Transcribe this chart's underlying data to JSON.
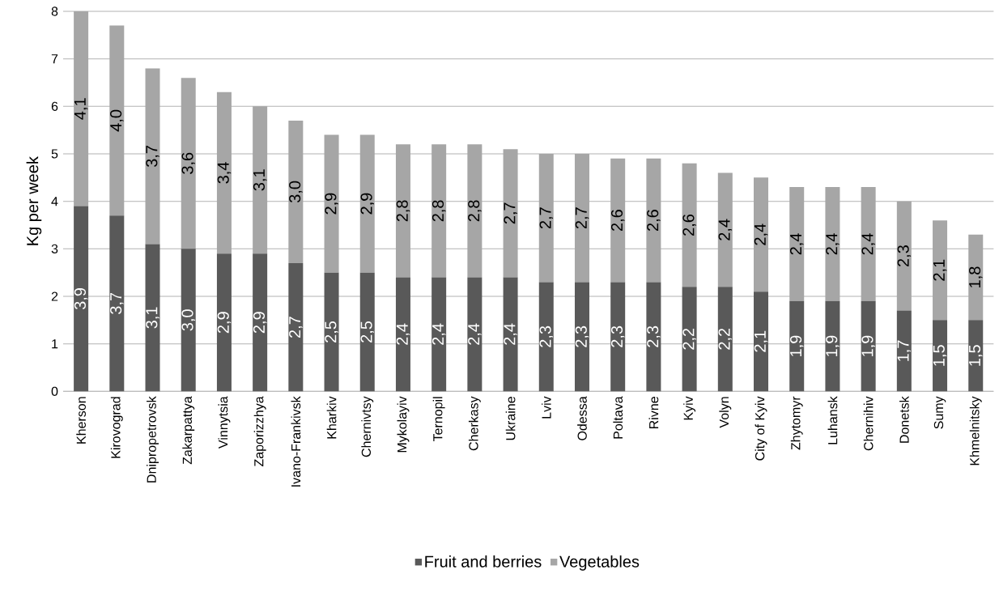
{
  "chart_data": {
    "type": "bar",
    "stacked": true,
    "ylabel": "Kg per week",
    "ylim": [
      0,
      8
    ],
    "yticks": [
      0,
      1,
      2,
      3,
      4,
      5,
      6,
      7,
      8
    ],
    "grid": "y",
    "legend": "bottom",
    "categories": [
      "Kherson",
      "Kirovograd",
      "Dnipropetrovsk",
      "Zakarpattya",
      "Vinnytsia",
      "Zaporizzhya",
      "Ivano-Frankivsk",
      "Kharkiv",
      "Chernivtsy",
      "Mykolayiv",
      "Ternopil",
      "Cherkasy",
      "Ukraine",
      "Lviv",
      "Odessa",
      "Poltava",
      "Rivne",
      "Kyiv",
      "Volyn",
      "City of Kyiv",
      "Zhytomyr",
      "Luhansk",
      "Chernihiv",
      "Donetsk",
      "Sumy",
      "Khmelnitsky"
    ],
    "series": [
      {
        "name": "Fruit and berries",
        "color": "#595959",
        "values": [
          3.9,
          3.7,
          3.1,
          3.0,
          2.9,
          2.9,
          2.7,
          2.5,
          2.5,
          2.4,
          2.4,
          2.4,
          2.4,
          2.3,
          2.3,
          2.3,
          2.3,
          2.2,
          2.2,
          2.1,
          1.9,
          1.9,
          1.9,
          1.7,
          1.5,
          1.5
        ],
        "value_labels": [
          "3,9",
          "3,7",
          "3,1",
          "3,0",
          "2,9",
          "2,9",
          "2,7",
          "2,5",
          "2,5",
          "2,4",
          "2,4",
          "2,4",
          "2,4",
          "2,3",
          "2,3",
          "2,3",
          "2,3",
          "2,2",
          "2,2",
          "2,1",
          "1,9",
          "1,9",
          "1,9",
          "1,7",
          "1,5",
          "1,5"
        ]
      },
      {
        "name": "Vegetables",
        "color": "#a6a6a6",
        "values": [
          4.1,
          4.0,
          3.7,
          3.6,
          3.4,
          3.1,
          3.0,
          2.9,
          2.9,
          2.8,
          2.8,
          2.8,
          2.7,
          2.7,
          2.7,
          2.6,
          2.6,
          2.6,
          2.4,
          2.4,
          2.4,
          2.4,
          2.4,
          2.3,
          2.1,
          1.8
        ],
        "value_labels": [
          "4,1",
          "4,0",
          "3,7",
          "3,6",
          "3,4",
          "3,1",
          "3,0",
          "2,9",
          "2,9",
          "2,8",
          "2,8",
          "2,8",
          "2,7",
          "2,7",
          "2,7",
          "2,6",
          "2,6",
          "2,6",
          "2,4",
          "2,4",
          "2,4",
          "2,4",
          "2,4",
          "2,3",
          "2,1",
          "1,8"
        ]
      }
    ]
  }
}
